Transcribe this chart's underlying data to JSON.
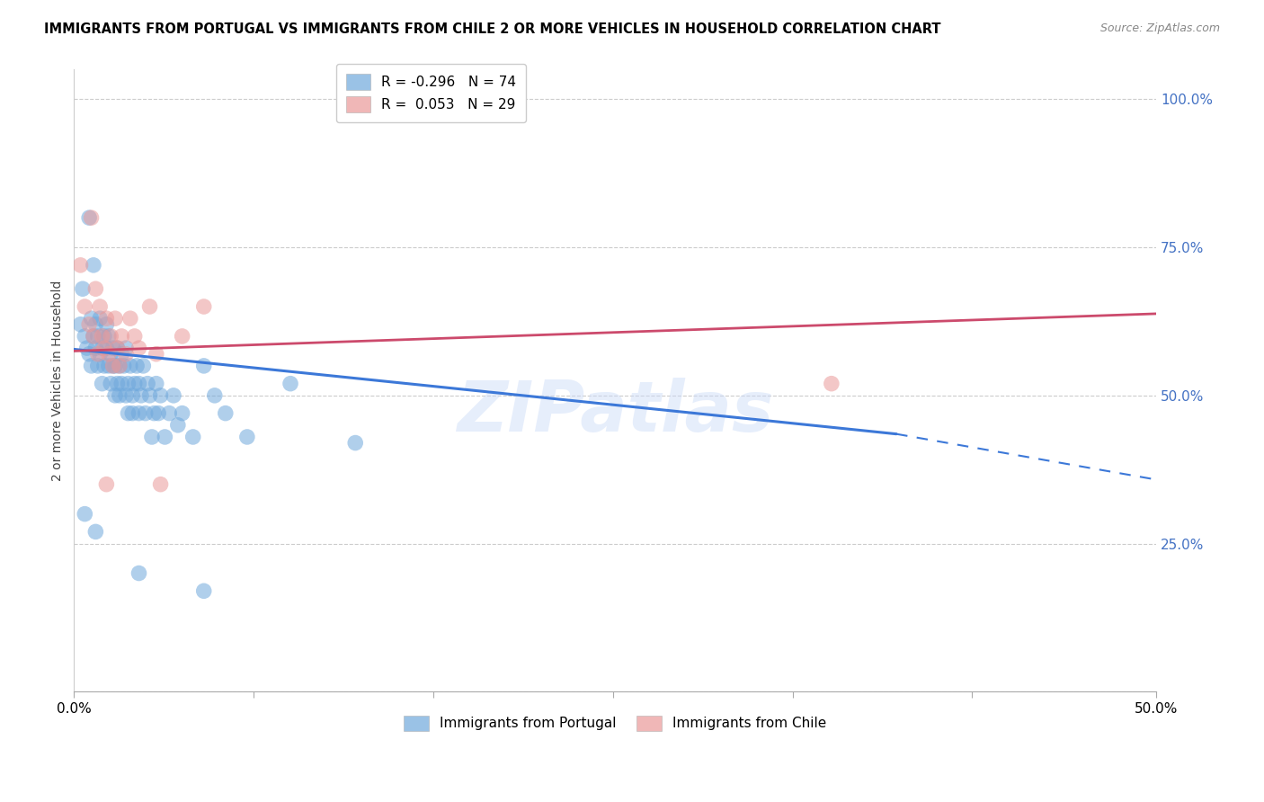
{
  "title": "IMMIGRANTS FROM PORTUGAL VS IMMIGRANTS FROM CHILE 2 OR MORE VEHICLES IN HOUSEHOLD CORRELATION CHART",
  "source": "Source: ZipAtlas.com",
  "ylabel": "2 or more Vehicles in Household",
  "xlim": [
    0.0,
    0.5
  ],
  "ylim": [
    0.0,
    1.05
  ],
  "yticks": [
    0.0,
    0.25,
    0.5,
    0.75,
    1.0
  ],
  "ytick_labels": [
    "",
    "25.0%",
    "50.0%",
    "75.0%",
    "100.0%"
  ],
  "xticks": [
    0.0,
    0.083,
    0.166,
    0.249,
    0.332,
    0.415,
    0.5
  ],
  "xtick_labels": [
    "0.0%",
    "",
    "",
    "",
    "",
    "",
    "50.0%"
  ],
  "portugal_color": "#6fa8dc",
  "chile_color": "#ea9999",
  "portugal_R": -0.296,
  "portugal_N": 74,
  "chile_R": 0.053,
  "chile_N": 29,
  "regression_blue_color": "#3c78d8",
  "regression_pink_color": "#cc4a6c",
  "regression_blue_x0": 0.0,
  "regression_blue_y0": 0.578,
  "regression_blue_x1": 0.38,
  "regression_blue_y1": 0.435,
  "regression_blue_xdash0": 0.38,
  "regression_blue_ydash0": 0.435,
  "regression_blue_xdash1": 0.5,
  "regression_blue_ydash1": 0.358,
  "regression_pink_x0": 0.0,
  "regression_pink_y0": 0.575,
  "regression_pink_x1": 0.5,
  "regression_pink_y1": 0.638,
  "watermark": "ZIPatlas",
  "portugal_points": [
    [
      0.003,
      0.62
    ],
    [
      0.004,
      0.68
    ],
    [
      0.005,
      0.6
    ],
    [
      0.006,
      0.58
    ],
    [
      0.007,
      0.8
    ],
    [
      0.007,
      0.57
    ],
    [
      0.008,
      0.63
    ],
    [
      0.008,
      0.55
    ],
    [
      0.009,
      0.6
    ],
    [
      0.009,
      0.72
    ],
    [
      0.01,
      0.58
    ],
    [
      0.01,
      0.62
    ],
    [
      0.011,
      0.55
    ],
    [
      0.011,
      0.6
    ],
    [
      0.012,
      0.63
    ],
    [
      0.012,
      0.57
    ],
    [
      0.013,
      0.58
    ],
    [
      0.013,
      0.52
    ],
    [
      0.014,
      0.6
    ],
    [
      0.014,
      0.55
    ],
    [
      0.015,
      0.58
    ],
    [
      0.015,
      0.62
    ],
    [
      0.016,
      0.55
    ],
    [
      0.016,
      0.6
    ],
    [
      0.017,
      0.57
    ],
    [
      0.017,
      0.52
    ],
    [
      0.018,
      0.55
    ],
    [
      0.018,
      0.58
    ],
    [
      0.019,
      0.5
    ],
    [
      0.019,
      0.55
    ],
    [
      0.02,
      0.58
    ],
    [
      0.02,
      0.52
    ],
    [
      0.021,
      0.55
    ],
    [
      0.021,
      0.5
    ],
    [
      0.022,
      0.57
    ],
    [
      0.022,
      0.52
    ],
    [
      0.023,
      0.55
    ],
    [
      0.024,
      0.5
    ],
    [
      0.024,
      0.58
    ],
    [
      0.025,
      0.47
    ],
    [
      0.025,
      0.52
    ],
    [
      0.026,
      0.55
    ],
    [
      0.027,
      0.5
    ],
    [
      0.027,
      0.47
    ],
    [
      0.028,
      0.52
    ],
    [
      0.029,
      0.55
    ],
    [
      0.03,
      0.47
    ],
    [
      0.03,
      0.52
    ],
    [
      0.031,
      0.5
    ],
    [
      0.032,
      0.55
    ],
    [
      0.033,
      0.47
    ],
    [
      0.034,
      0.52
    ],
    [
      0.035,
      0.5
    ],
    [
      0.036,
      0.43
    ],
    [
      0.037,
      0.47
    ],
    [
      0.038,
      0.52
    ],
    [
      0.039,
      0.47
    ],
    [
      0.04,
      0.5
    ],
    [
      0.042,
      0.43
    ],
    [
      0.044,
      0.47
    ],
    [
      0.046,
      0.5
    ],
    [
      0.048,
      0.45
    ],
    [
      0.05,
      0.47
    ],
    [
      0.055,
      0.43
    ],
    [
      0.06,
      0.55
    ],
    [
      0.065,
      0.5
    ],
    [
      0.07,
      0.47
    ],
    [
      0.08,
      0.43
    ],
    [
      0.1,
      0.52
    ],
    [
      0.13,
      0.42
    ],
    [
      0.005,
      0.3
    ],
    [
      0.01,
      0.27
    ],
    [
      0.03,
      0.2
    ],
    [
      0.06,
      0.17
    ]
  ],
  "chile_points": [
    [
      0.003,
      0.72
    ],
    [
      0.005,
      0.65
    ],
    [
      0.007,
      0.62
    ],
    [
      0.008,
      0.8
    ],
    [
      0.009,
      0.6
    ],
    [
      0.01,
      0.68
    ],
    [
      0.011,
      0.57
    ],
    [
      0.012,
      0.65
    ],
    [
      0.013,
      0.6
    ],
    [
      0.014,
      0.58
    ],
    [
      0.015,
      0.63
    ],
    [
      0.016,
      0.57
    ],
    [
      0.017,
      0.6
    ],
    [
      0.018,
      0.55
    ],
    [
      0.019,
      0.63
    ],
    [
      0.02,
      0.58
    ],
    [
      0.021,
      0.55
    ],
    [
      0.022,
      0.6
    ],
    [
      0.024,
      0.57
    ],
    [
      0.026,
      0.63
    ],
    [
      0.028,
      0.6
    ],
    [
      0.03,
      0.58
    ],
    [
      0.035,
      0.65
    ],
    [
      0.038,
      0.57
    ],
    [
      0.04,
      0.35
    ],
    [
      0.05,
      0.6
    ],
    [
      0.06,
      0.65
    ],
    [
      0.35,
      0.52
    ],
    [
      0.015,
      0.35
    ]
  ]
}
